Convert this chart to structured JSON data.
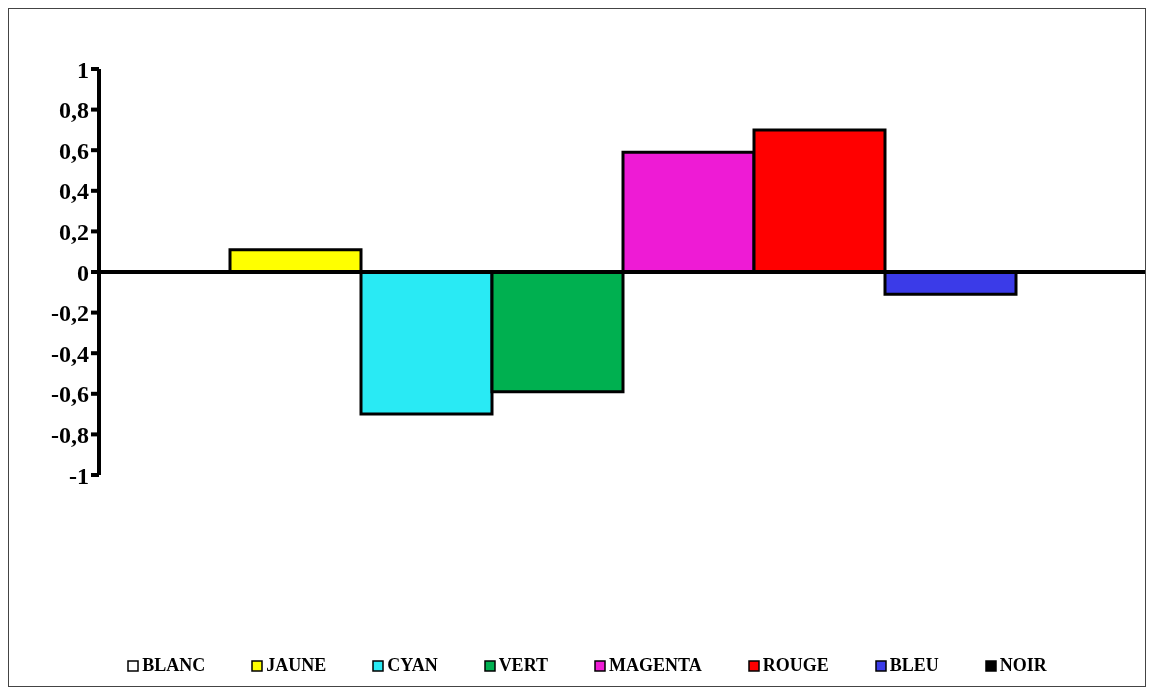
{
  "chart_data": {
    "type": "bar",
    "categories": [
      null
    ],
    "series": [
      {
        "name": "BLANC",
        "color": "#ffffff",
        "values": [
          0
        ]
      },
      {
        "name": "JAUNE",
        "color": "#ffff00",
        "values": [
          0.11
        ]
      },
      {
        "name": "CYAN",
        "color": "#29eaf4",
        "values": [
          -0.7
        ]
      },
      {
        "name": "VERT",
        "color": "#00b050",
        "values": [
          -0.59
        ]
      },
      {
        "name": "MAGENTA",
        "color": "#ee1bd5",
        "values": [
          0.59
        ]
      },
      {
        "name": "ROUGE",
        "color": "#ff0000",
        "values": [
          0.7
        ]
      },
      {
        "name": "BLEU",
        "color": "#3b3be8",
        "values": [
          -0.11
        ]
      },
      {
        "name": "NOIR",
        "color": "#000000",
        "values": [
          0
        ]
      }
    ],
    "ylim": [
      -1,
      1
    ],
    "yticks": [
      {
        "value": -1,
        "label": "-1"
      },
      {
        "value": -0.8,
        "label": "-0,8"
      },
      {
        "value": -0.6,
        "label": "-0,6"
      },
      {
        "value": -0.4,
        "label": "-0,4"
      },
      {
        "value": -0.2,
        "label": "-0,2"
      },
      {
        "value": 0,
        "label": "0"
      },
      {
        "value": 0.2,
        "label": "0,2"
      },
      {
        "value": 0.4,
        "label": "0,4"
      },
      {
        "value": 0.6,
        "label": "0,6"
      },
      {
        "value": 0.8,
        "label": "0,8"
      },
      {
        "value": 1,
        "label": "1"
      }
    ],
    "legend": "bottom",
    "tick_labels": "y"
  }
}
